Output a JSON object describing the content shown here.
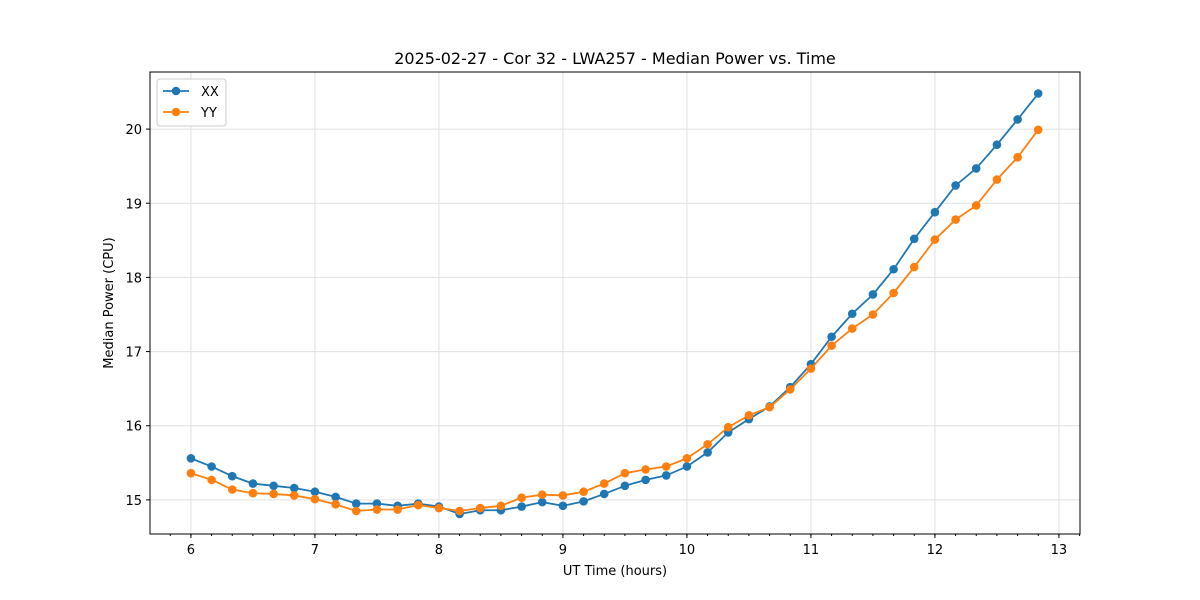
{
  "chart_data": {
    "type": "line",
    "title": "2025-02-27 - Cor 32 - LWA257 - Median Power vs. Time",
    "xlabel": "UT Time (hours)",
    "ylabel": "Median Power (CPU)",
    "xlim": [
      5.67,
      13.17
    ],
    "ylim": [
      14.54,
      20.77
    ],
    "xticks": [
      6,
      7,
      8,
      9,
      10,
      11,
      12,
      13
    ],
    "yticks": [
      15,
      16,
      17,
      18,
      19,
      20
    ],
    "grid": true,
    "legend_position": "top-left",
    "x": [
      6.0,
      6.167,
      6.333,
      6.5,
      6.667,
      6.833,
      7.0,
      7.167,
      7.333,
      7.5,
      7.667,
      7.833,
      8.0,
      8.167,
      8.333,
      8.5,
      8.667,
      8.833,
      9.0,
      9.167,
      9.333,
      9.5,
      9.667,
      9.833,
      10.0,
      10.167,
      10.333,
      10.5,
      10.667,
      10.833,
      11.0,
      11.167,
      11.333,
      11.5,
      11.667,
      11.833,
      12.0,
      12.167,
      12.333,
      12.5,
      12.667,
      12.833
    ],
    "series": [
      {
        "name": "XX",
        "color": "#1f77b4",
        "values": [
          15.56,
          15.45,
          15.32,
          15.22,
          15.19,
          15.16,
          15.11,
          15.04,
          14.95,
          14.95,
          14.92,
          14.95,
          14.91,
          14.81,
          14.86,
          14.86,
          14.91,
          14.97,
          14.92,
          14.98,
          15.08,
          15.19,
          15.27,
          15.33,
          15.45,
          15.64,
          15.91,
          16.09,
          16.26,
          16.52,
          16.83,
          17.2,
          17.51,
          17.77,
          18.11,
          18.52,
          18.88,
          19.24,
          19.47,
          19.79,
          20.13,
          20.48
        ]
      },
      {
        "name": "YY",
        "color": "#ff7f0e",
        "values": [
          15.36,
          15.27,
          15.14,
          15.09,
          15.08,
          15.06,
          15.01,
          14.94,
          14.85,
          14.87,
          14.87,
          14.93,
          14.89,
          14.85,
          14.89,
          14.92,
          15.03,
          15.07,
          15.06,
          15.11,
          15.22,
          15.36,
          15.41,
          15.45,
          15.56,
          15.75,
          15.98,
          16.14,
          16.25,
          16.49,
          16.77,
          17.08,
          17.31,
          17.5,
          17.79,
          18.14,
          18.51,
          18.78,
          18.97,
          19.32,
          19.62,
          19.99
        ]
      }
    ]
  }
}
